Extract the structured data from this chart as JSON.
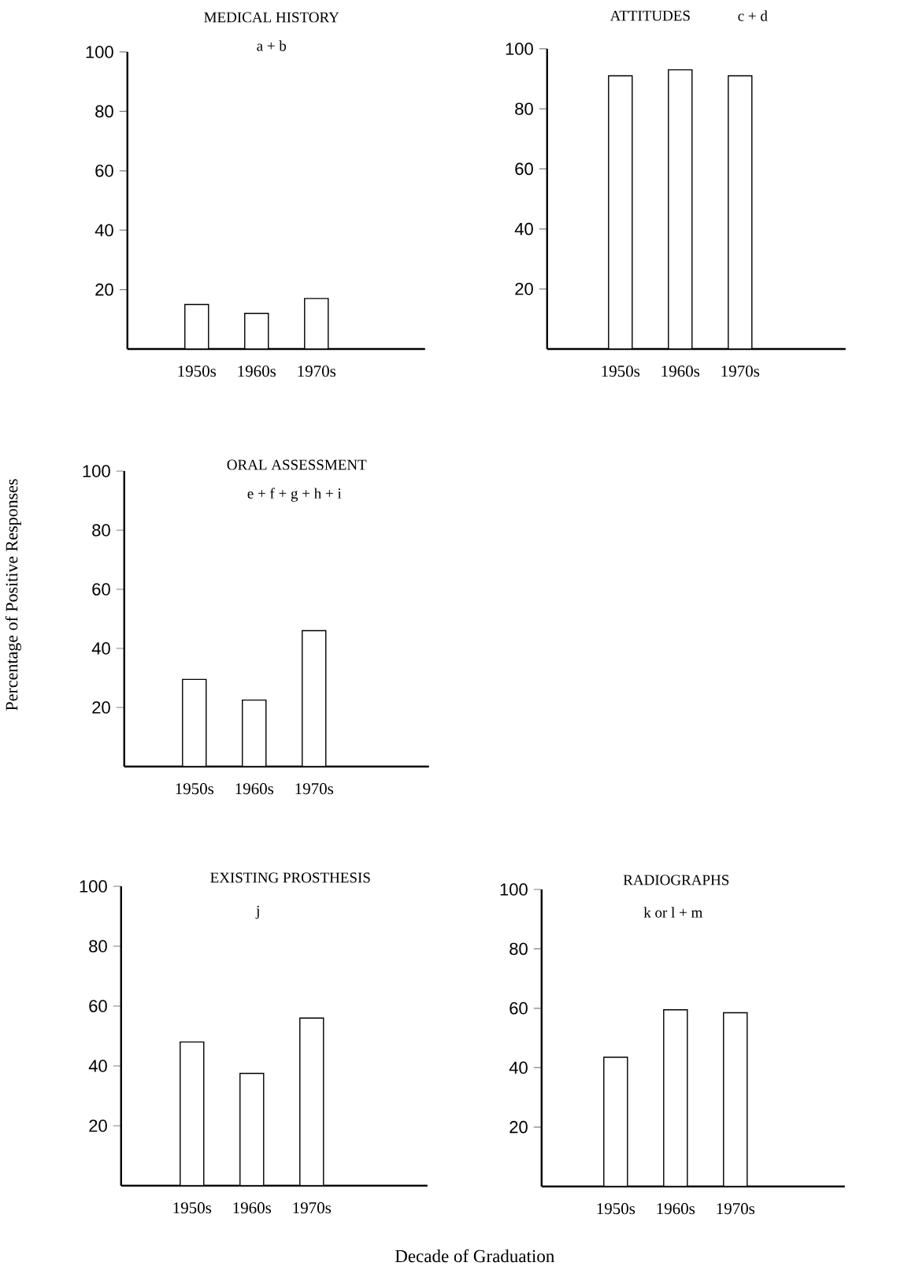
{
  "chart_data": [
    {
      "type": "bar",
      "title": "MEDICAL HISTORY",
      "subtitle": "a + b",
      "categories": [
        "1950s",
        "1960s",
        "1970s"
      ],
      "values": [
        15,
        12,
        17
      ],
      "color": "#000000",
      "ylim": [
        0,
        100
      ],
      "yticks": [
        20,
        40,
        60,
        80,
        100
      ]
    },
    {
      "type": "bar",
      "title": "ATTITUDES",
      "subtitle": "c + d",
      "categories": [
        "1950s",
        "1960s",
        "1970s"
      ],
      "values": [
        91,
        93,
        91
      ],
      "color": "#000000",
      "ylim": [
        0,
        100
      ],
      "yticks": [
        20,
        40,
        60,
        80,
        100
      ]
    },
    {
      "type": "bar",
      "title": "ORAL ASSESSMENT",
      "subtitle": "e + f + g + h + i",
      "ylabel": "Percentage of Positive Responses",
      "categories": [
        "1950s",
        "1960s",
        "1970s"
      ],
      "values": [
        29.5,
        22.5,
        46
      ],
      "color": "#000000",
      "ylim": [
        0,
        100
      ],
      "yticks": [
        20,
        40,
        60,
        80,
        100
      ]
    },
    {
      "type": "bar",
      "title": "EXISTING PROSTHESIS",
      "subtitle": "j",
      "xlabel": "Decade of Graduation",
      "categories": [
        "1950s",
        "1960s",
        "1970s"
      ],
      "values": [
        48,
        37.5,
        56
      ],
      "color": "#000000",
      "ylim": [
        0,
        100
      ],
      "yticks": [
        20,
        40,
        60,
        80,
        100
      ]
    },
    {
      "type": "bar",
      "title": "RADIOGRAPHS",
      "subtitle": "k or l + m",
      "categories": [
        "1950s",
        "1960s",
        "1970s"
      ],
      "values": [
        43.5,
        59.5,
        58.5
      ],
      "color": "#000000",
      "ylim": [
        0,
        100
      ],
      "yticks": [
        20,
        40,
        60,
        80,
        100
      ]
    }
  ]
}
